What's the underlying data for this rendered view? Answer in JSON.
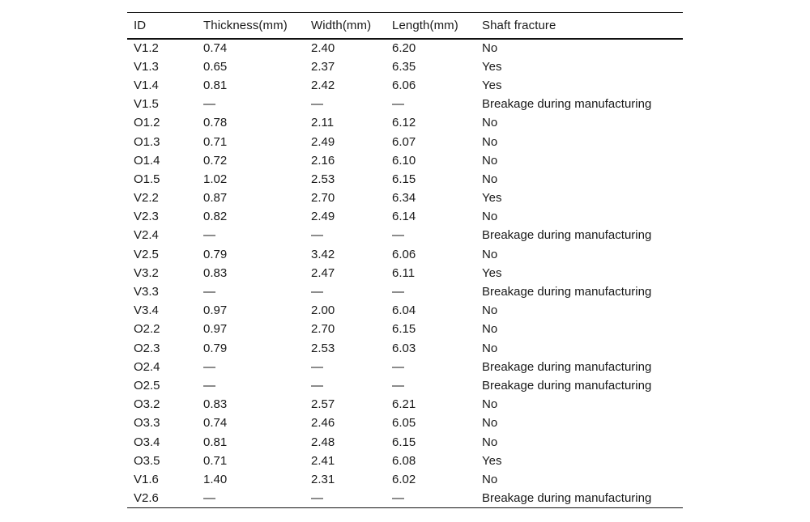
{
  "colors": {
    "background": "#ffffff",
    "text": "#1a1a1a",
    "rule": "#111111"
  },
  "table": {
    "columns": [
      "ID",
      "Thickness(mm)",
      "Width(mm)",
      "Length(mm)",
      "Shaft fracture"
    ],
    "missing_value_symbol": "—",
    "rows": [
      [
        "V1.2",
        "0.74",
        "2.40",
        "6.20",
        "No"
      ],
      [
        "V1.3",
        "0.65",
        "2.37",
        "6.35",
        "Yes"
      ],
      [
        "V1.4",
        "0.81",
        "2.42",
        "6.06",
        "Yes"
      ],
      [
        "V1.5",
        "—",
        "—",
        "—",
        "Breakage during manufacturing"
      ],
      [
        "O1.2",
        "0.78",
        "2.11",
        "6.12",
        "No"
      ],
      [
        "O1.3",
        "0.71",
        "2.49",
        "6.07",
        "No"
      ],
      [
        "O1.4",
        "0.72",
        "2.16",
        "6.10",
        "No"
      ],
      [
        "O1.5",
        "1.02",
        "2.53",
        "6.15",
        "No"
      ],
      [
        "V2.2",
        "0.87",
        "2.70",
        "6.34",
        "Yes"
      ],
      [
        "V2.3",
        "0.82",
        "2.49",
        "6.14",
        "No"
      ],
      [
        "V2.4",
        "—",
        "—",
        "—",
        "Breakage during manufacturing"
      ],
      [
        "V2.5",
        "0.79",
        "3.42",
        "6.06",
        "No"
      ],
      [
        "V3.2",
        "0.83",
        "2.47",
        "6.11",
        "Yes"
      ],
      [
        "V3.3",
        "—",
        "—",
        "—",
        "Breakage during manufacturing"
      ],
      [
        "V3.4",
        "0.97",
        "2.00",
        "6.04",
        "No"
      ],
      [
        "O2.2",
        "0.97",
        "2.70",
        "6.15",
        "No"
      ],
      [
        "O2.3",
        "0.79",
        "2.53",
        "6.03",
        "No"
      ],
      [
        "O2.4",
        "—",
        "—",
        "—",
        "Breakage during manufacturing"
      ],
      [
        "O2.5",
        "—",
        "—",
        "—",
        "Breakage during manufacturing"
      ],
      [
        "O3.2",
        "0.83",
        "2.57",
        "6.21",
        "No"
      ],
      [
        "O3.3",
        "0.74",
        "2.46",
        "6.05",
        "No"
      ],
      [
        "O3.4",
        "0.81",
        "2.48",
        "6.15",
        "No"
      ],
      [
        "O3.5",
        "0.71",
        "2.41",
        "6.08",
        "Yes"
      ],
      [
        "V1.6",
        "1.40",
        "2.31",
        "6.02",
        "No"
      ],
      [
        "V2.6",
        "—",
        "—",
        "—",
        "Breakage during manufacturing"
      ]
    ]
  }
}
